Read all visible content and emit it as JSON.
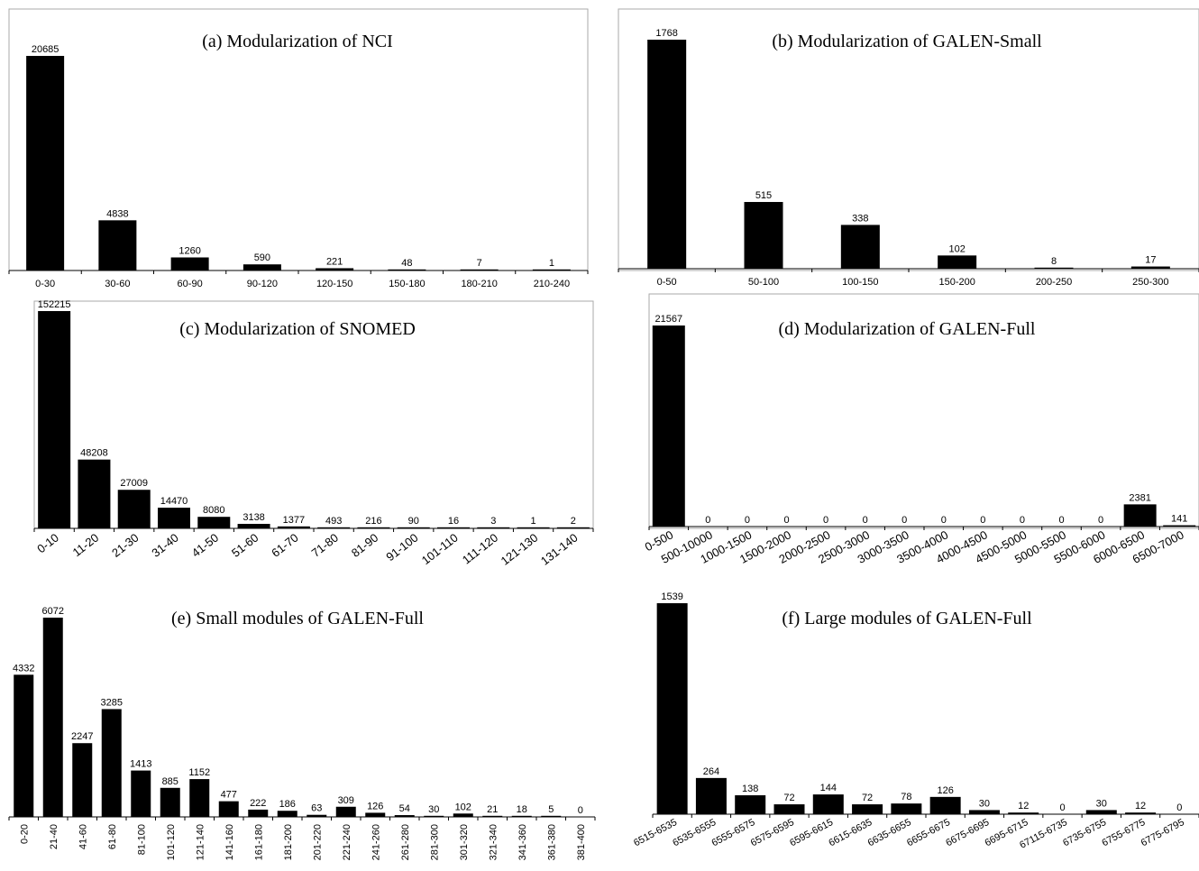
{
  "colors": {
    "bar": "#000000",
    "frame": "#aaaaaa",
    "axis": "#000000"
  },
  "chart_data": [
    {
      "type": "bar",
      "title": "(a) Modularization of NCI",
      "categories": [
        "0-30",
        "30-60",
        "60-90",
        "90-120",
        "120-150",
        "150-180",
        "180-210",
        "210-240"
      ],
      "values": [
        20685,
        4838,
        1260,
        590,
        221,
        48,
        7,
        1
      ]
    },
    {
      "type": "bar",
      "title": "(b) Modularization of GALEN-Small",
      "categories": [
        "0-50",
        "50-100",
        "100-150",
        "150-200",
        "200-250",
        "250-300"
      ],
      "values": [
        1768,
        515,
        338,
        102,
        8,
        17
      ]
    },
    {
      "type": "bar",
      "title": "(c) Modularization of SNOMED",
      "categories": [
        "0-10",
        "11-20",
        "21-30",
        "31-40",
        "41-50",
        "51-60",
        "61-70",
        "71-80",
        "81-90",
        "91-100",
        "101-110",
        "111-120",
        "121-130",
        "131-140"
      ],
      "values": [
        152215,
        48208,
        27009,
        14470,
        8080,
        3138,
        1377,
        493,
        216,
        90,
        16,
        3,
        1,
        2
      ]
    },
    {
      "type": "bar",
      "title": "(d) Modularization of GALEN-Full",
      "categories": [
        "0-500",
        "500-10000",
        "1000-1500",
        "1500-2000",
        "2000-2500",
        "2500-3000",
        "3000-3500",
        "3500-4000",
        "4000-4500",
        "4500-5000",
        "5000-5500",
        "5500-6000",
        "6000-6500",
        "6500-7000"
      ],
      "values": [
        21567,
        0,
        0,
        0,
        0,
        0,
        0,
        0,
        0,
        0,
        0,
        0,
        2381,
        141
      ]
    },
    {
      "type": "bar",
      "title": "(e) Small modules of GALEN-Full",
      "categories": [
        "0-20",
        "21-40",
        "41-60",
        "61-80",
        "81-100",
        "101-120",
        "121-140",
        "141-160",
        "161-180",
        "181-200",
        "201-220",
        "221-240",
        "241-260",
        "261-280",
        "281-300",
        "301-320",
        "321-340",
        "341-360",
        "361-380",
        "381-400"
      ],
      "values": [
        4332,
        6072,
        2247,
        3285,
        1413,
        885,
        1152,
        477,
        222,
        186,
        63,
        309,
        126,
        54,
        30,
        102,
        21,
        18,
        5,
        0
      ]
    },
    {
      "type": "bar",
      "title": "(f) Large modules of GALEN-Full",
      "categories": [
        "6515-6535",
        "6535-6555",
        "6555-6575",
        "6575-6595",
        "6595-6615",
        "6615-6635",
        "6635-6655",
        "6655-6675",
        "6675-6695",
        "6695-6715",
        "67115-6735",
        "6735-6755",
        "6755-6775",
        "6775-6795"
      ],
      "values": [
        1539,
        264,
        138,
        72,
        144,
        72,
        78,
        126,
        30,
        12,
        0,
        30,
        12,
        0
      ]
    }
  ]
}
